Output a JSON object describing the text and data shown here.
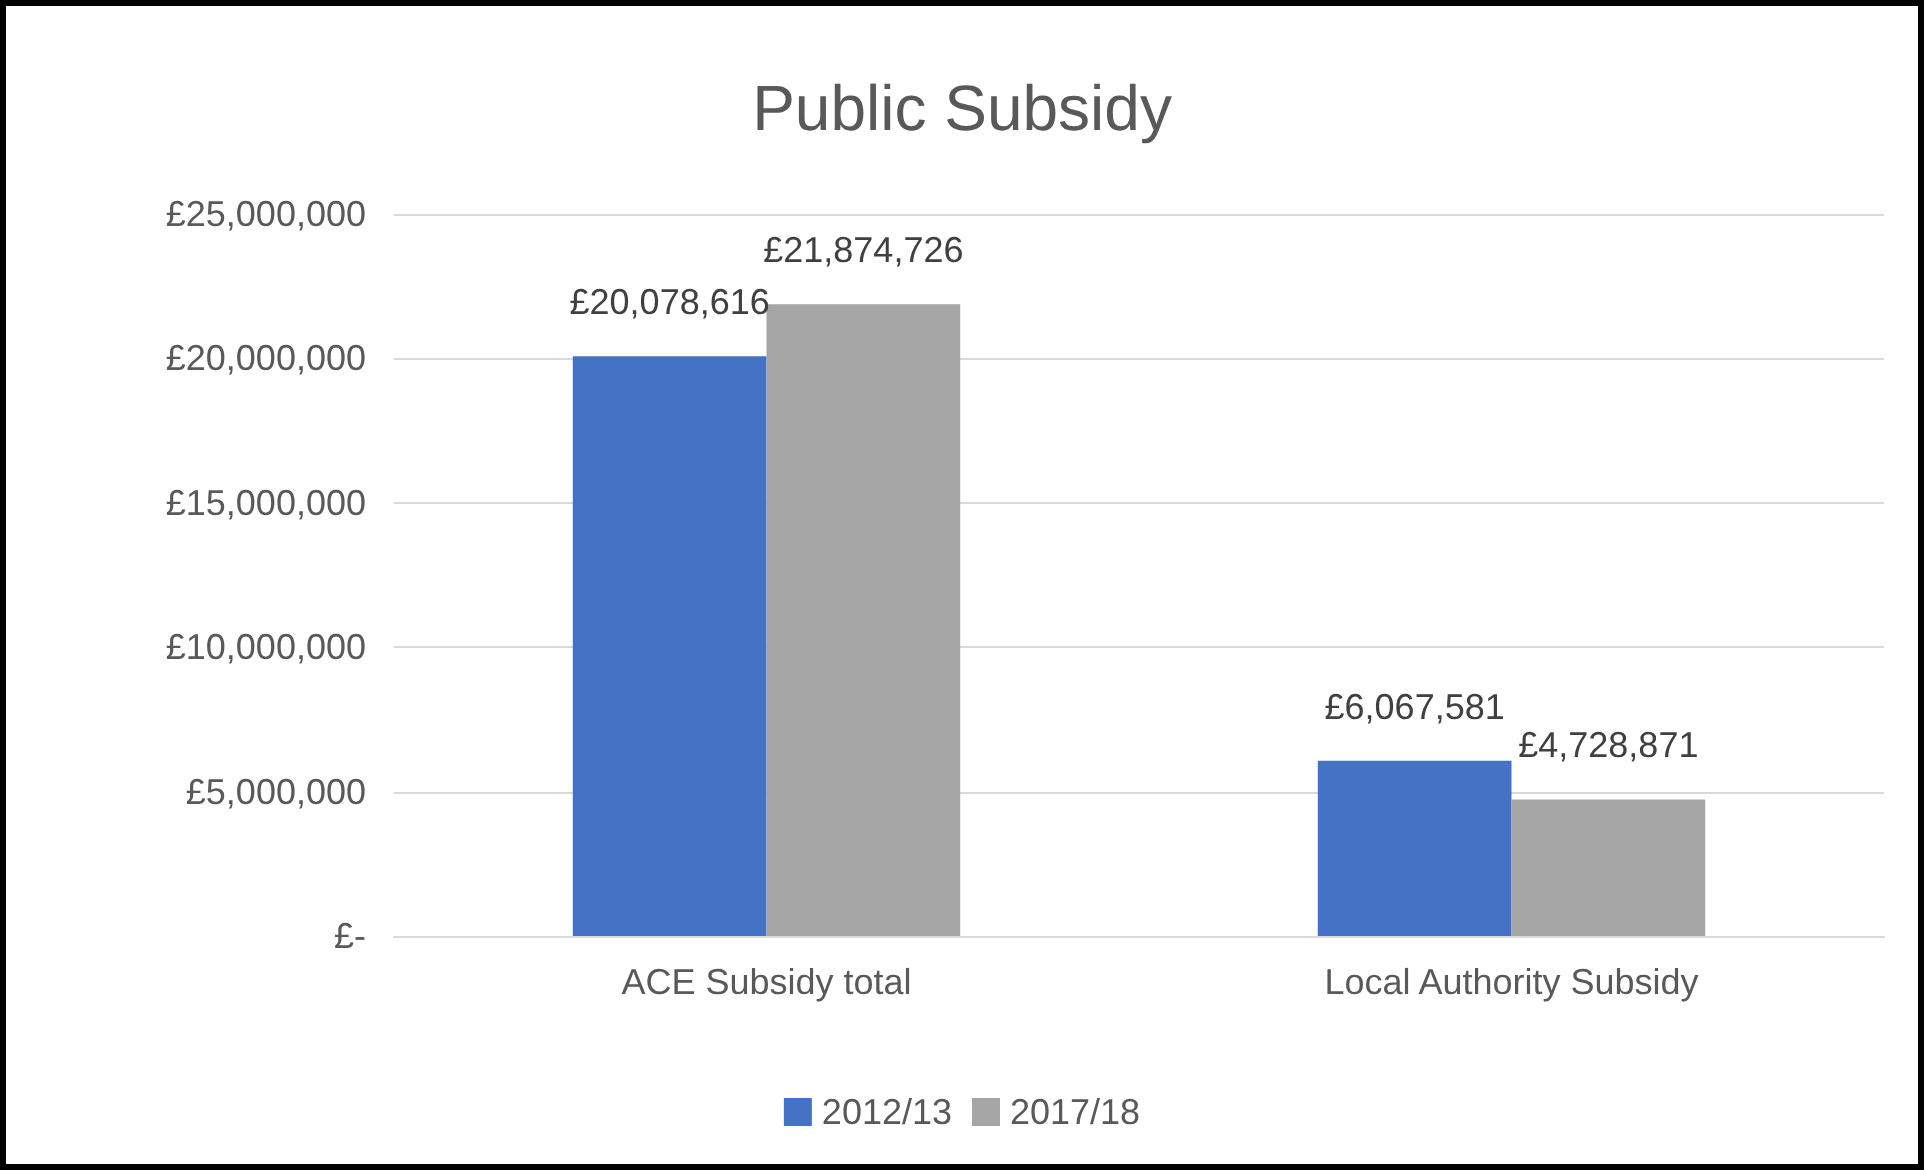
{
  "chart_data": {
    "type": "bar",
    "title": "Public Subsidy",
    "categories": [
      "ACE Subsidy total",
      "Local Authority Subsidy"
    ],
    "series": [
      {
        "name": "2012/13",
        "color": "#4472c4",
        "values": [
          20078616,
          6067581
        ],
        "value_labels": [
          "£20,078,616",
          "£6,067,581"
        ]
      },
      {
        "name": "2017/18",
        "color": "#a5a5a5",
        "values": [
          21874726,
          4728871
        ],
        "value_labels": [
          "£21,874,726",
          "£4,728,871"
        ]
      }
    ],
    "ylim": [
      0,
      25000000
    ],
    "yticks": [
      {
        "value": 0,
        "label": "£-"
      },
      {
        "value": 5000000,
        "label": "£5,000,000"
      },
      {
        "value": 10000000,
        "label": "£10,000,000"
      },
      {
        "value": 15000000,
        "label": "£15,000,000"
      },
      {
        "value": 20000000,
        "label": "£20,000,000"
      },
      {
        "value": 25000000,
        "label": "£25,000,000"
      }
    ],
    "grid": "y",
    "legend": "bottom"
  }
}
